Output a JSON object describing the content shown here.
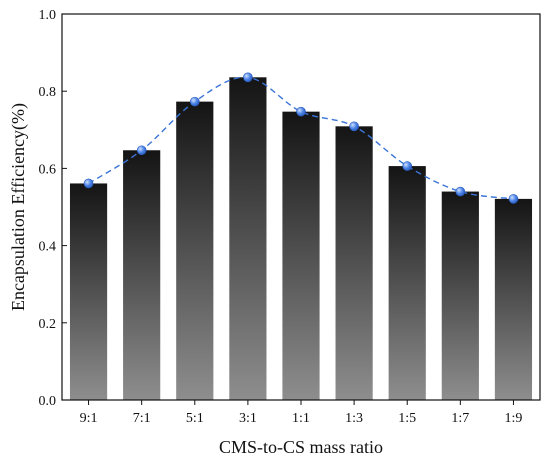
{
  "chart_data": {
    "type": "bar",
    "title": "",
    "xlabel": "CMS-to-CS mass ratio",
    "ylabel": "Encapsulation Efficiency(%)",
    "ylim": [
      0.0,
      1.0
    ],
    "yticks": [
      "0.0",
      "0.2",
      "0.4",
      "0.6",
      "0.8",
      "1.0"
    ],
    "categories": [
      "9:1",
      "7:1",
      "5:1",
      "3:1",
      "1:1",
      "1:3",
      "1:5",
      "1:7",
      "1:9"
    ],
    "values": [
      0.561,
      0.647,
      0.773,
      0.836,
      0.747,
      0.709,
      0.606,
      0.54,
      0.521
    ],
    "trend_line": {
      "style": "dashed",
      "marker": "circle",
      "color": "#3a74d6",
      "values": [
        0.561,
        0.647,
        0.773,
        0.836,
        0.747,
        0.709,
        0.606,
        0.54,
        0.521
      ]
    },
    "bar_gradient": {
      "top": "#141414",
      "bottom": "#8e8e8e"
    },
    "grid": false,
    "legend": "none"
  }
}
